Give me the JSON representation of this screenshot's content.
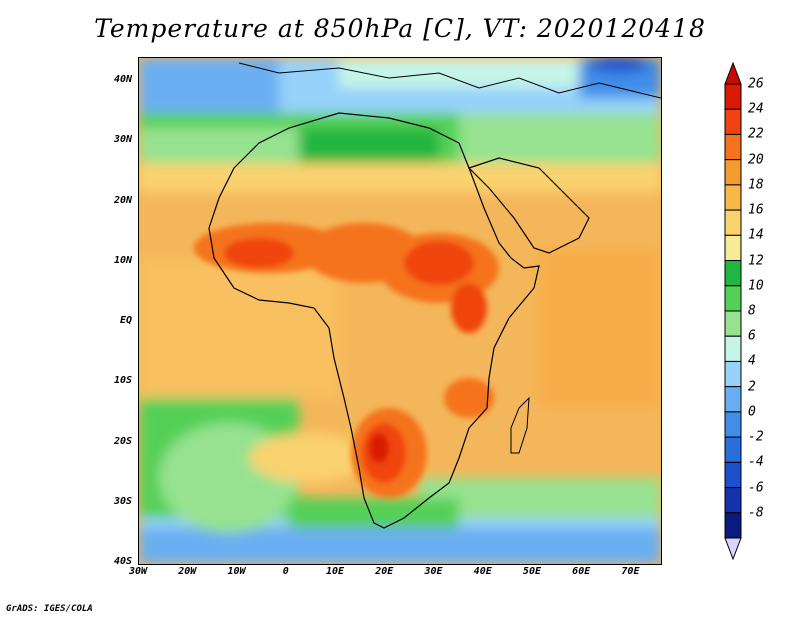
{
  "title": "Temperature at 850hPa [C], VT: 2020120418",
  "footer": "GrADS: IGES/COLA",
  "map": {
    "variable": "Temperature at 850hPa",
    "units": "C",
    "valid_time": "2020120418",
    "region": "Africa",
    "lat_labels": [
      "40N",
      "30N",
      "20N",
      "10N",
      "EQ",
      "10S",
      "20S",
      "30S",
      "40S"
    ],
    "lon_labels": [
      "30W",
      "20W",
      "10W",
      "0",
      "10E",
      "20E",
      "30E",
      "40E",
      "50E",
      "60E",
      "70E"
    ],
    "lat_range": [
      -40,
      44
    ],
    "lon_range": [
      -30,
      76
    ]
  },
  "colorbar": {
    "labels": [
      "26",
      "24",
      "22",
      "20",
      "18",
      "16",
      "14",
      "12",
      "10",
      "8",
      "6",
      "4",
      "2",
      "0",
      "-2",
      "-4",
      "-6",
      "-8"
    ],
    "colors": [
      "#d81a00",
      "#f04410",
      "#f5731f",
      "#f59b30",
      "#f8b848",
      "#fbd270",
      "#f7ea98",
      "#21b640",
      "#55d057",
      "#96e290",
      "#c6f4e8",
      "#96d2fa",
      "#6aaef2",
      "#418de8",
      "#2a6edb",
      "#1c50cc",
      "#1432ac",
      "#0b1a80"
    ],
    "top_arrow_color": "#c80a00",
    "bottom_arrow_color": "#d8d4fa"
  }
}
